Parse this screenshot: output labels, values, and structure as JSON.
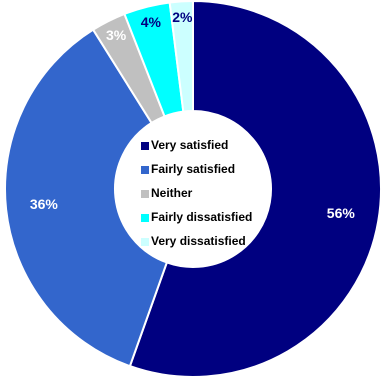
{
  "chart_data": {
    "type": "pie",
    "variant": "donut",
    "categories": [
      "Very satisfied",
      "Fairly satisfied",
      "Neither",
      "Fairly dissatisfied",
      "Very dissatisfied"
    ],
    "values": [
      56,
      36,
      3,
      4,
      2
    ],
    "labels": [
      "56%",
      "36%",
      "3%",
      "4%",
      "2%"
    ],
    "colors": [
      "#000080",
      "#3366cc",
      "#c0c0c0",
      "#00ffff",
      "#ccffff"
    ],
    "label_colors": [
      "#ffffff",
      "#ffffff",
      "#ffffff",
      "#000080",
      "#000080"
    ],
    "legend": {
      "placement": "center",
      "entries": [
        "Very satisfied",
        "Fairly satisfied",
        "Neither",
        "Fairly dissatisfied",
        "Very dissatisfied"
      ]
    },
    "title": ""
  }
}
